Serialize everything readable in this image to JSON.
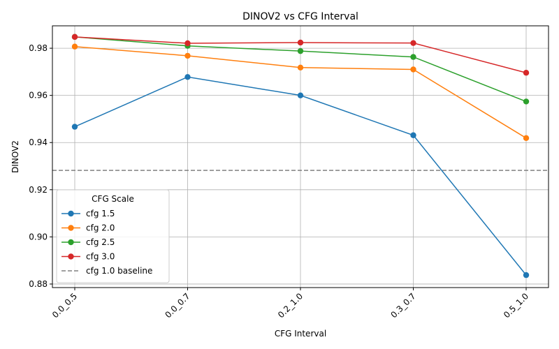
{
  "chart_data": {
    "type": "line",
    "title": "DINOV2 vs CFG Interval",
    "xlabel": "CFG Interval",
    "ylabel": "DINOV2",
    "categories": [
      "0.0_0.5",
      "0.0_0.7",
      "0.2_1.0",
      "0.3_0.7",
      "0.5_1.0"
    ],
    "ylim": [
      0.8785,
      0.9895
    ],
    "yticks": [
      "0.88",
      "0.90",
      "0.92",
      "0.94",
      "0.96",
      "0.98"
    ],
    "grid": true,
    "legend_position": "lower-left",
    "legend_title": "CFG Scale",
    "series": [
      {
        "name": "cfg 1.5",
        "color": "#1f77b4",
        "values": [
          0.9467,
          0.9678,
          0.96,
          0.9431,
          0.8838
        ]
      },
      {
        "name": "cfg 2.0",
        "color": "#ff7f0e",
        "values": [
          0.9807,
          0.9768,
          0.9718,
          0.971,
          0.9419
        ]
      },
      {
        "name": "cfg 2.5",
        "color": "#2ca02c",
        "values": [
          0.9848,
          0.981,
          0.9788,
          0.9763,
          0.9574
        ]
      },
      {
        "name": "cfg 3.0",
        "color": "#d62728",
        "values": [
          0.9848,
          0.9821,
          0.9824,
          0.9822,
          0.9696
        ]
      }
    ],
    "baseline": {
      "name": "cfg 1.0 baseline",
      "color": "#808080",
      "value": 0.9282
    }
  }
}
